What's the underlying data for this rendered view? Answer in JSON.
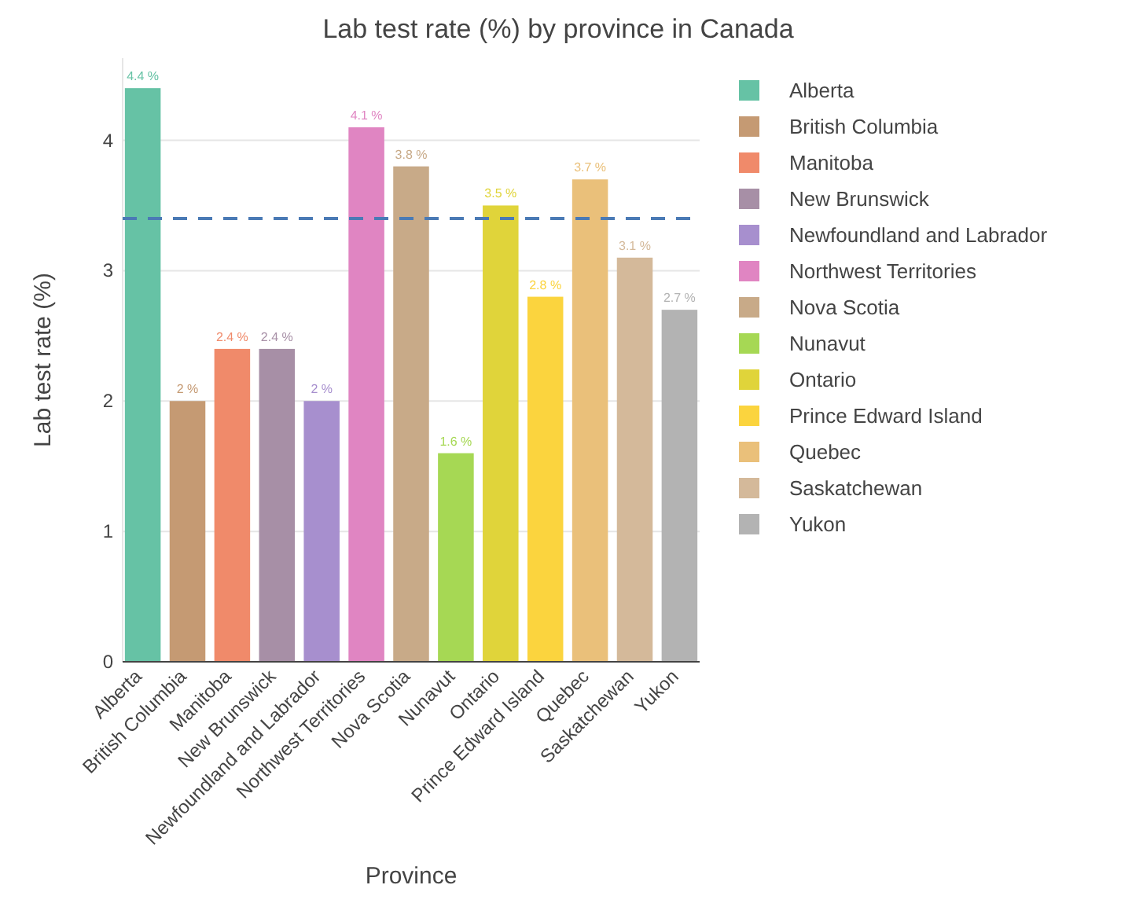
{
  "chart_data": {
    "type": "bar",
    "title": "Lab test rate (%) by province in Canada",
    "xlabel": "Province",
    "ylabel": "Lab test rate (%)",
    "categories": [
      "Alberta",
      "British Columbia",
      "Manitoba",
      "New Brunswick",
      "Newfoundland and Labrador",
      "Northwest Territories",
      "Nova Scotia",
      "Nunavut",
      "Ontario",
      "Prince Edward Island",
      "Quebec",
      "Saskatchewan",
      "Yukon"
    ],
    "series": [
      {
        "name": "Alberta",
        "color": "#66c2a5",
        "values": [
          4.4,
          null,
          null,
          null,
          null,
          null,
          null,
          null,
          null,
          null,
          null,
          null,
          null
        ],
        "value_labels": [
          "4.4 %",
          null,
          null,
          null,
          null,
          null,
          null,
          null,
          null,
          null,
          null,
          null,
          null
        ]
      },
      {
        "name": "British Columbia",
        "color": "#c59a73",
        "values": [
          null,
          2,
          null,
          null,
          null,
          null,
          null,
          null,
          null,
          null,
          null,
          null,
          null
        ],
        "value_labels": [
          null,
          "2 %",
          null,
          null,
          null,
          null,
          null,
          null,
          null,
          null,
          null,
          null,
          null
        ]
      },
      {
        "name": "Manitoba",
        "color": "#f08a6a",
        "values": [
          null,
          null,
          2.4,
          null,
          null,
          null,
          null,
          null,
          null,
          null,
          null,
          null,
          null
        ],
        "value_labels": [
          null,
          null,
          "2.4 %",
          null,
          null,
          null,
          null,
          null,
          null,
          null,
          null,
          null,
          null
        ]
      },
      {
        "name": "New Brunswick",
        "color": "#a78fa6",
        "values": [
          null,
          null,
          null,
          2.4,
          null,
          null,
          null,
          null,
          null,
          null,
          null,
          null,
          null
        ],
        "value_labels": [
          null,
          null,
          null,
          "2.4 %",
          null,
          null,
          null,
          null,
          null,
          null,
          null,
          null,
          null
        ]
      },
      {
        "name": "Newfoundland and Labrador",
        "color": "#a78fce",
        "values": [
          null,
          null,
          null,
          null,
          2,
          null,
          null,
          null,
          null,
          null,
          null,
          null,
          null
        ],
        "value_labels": [
          null,
          null,
          null,
          null,
          "2 %",
          null,
          null,
          null,
          null,
          null,
          null,
          null,
          null
        ]
      },
      {
        "name": "Northwest Territories",
        "color": "#e085c2",
        "values": [
          null,
          null,
          null,
          null,
          null,
          4.1,
          null,
          null,
          null,
          null,
          null,
          null,
          null
        ],
        "value_labels": [
          null,
          null,
          null,
          null,
          null,
          "4.1 %",
          null,
          null,
          null,
          null,
          null,
          null,
          null
        ]
      },
      {
        "name": "Nova Scotia",
        "color": "#c8aa88",
        "values": [
          null,
          null,
          null,
          null,
          null,
          null,
          3.8,
          null,
          null,
          null,
          null,
          null,
          null
        ],
        "value_labels": [
          null,
          null,
          null,
          null,
          null,
          null,
          "3.8 %",
          null,
          null,
          null,
          null,
          null,
          null
        ]
      },
      {
        "name": "Nunavut",
        "color": "#a6d854",
        "values": [
          null,
          null,
          null,
          null,
          null,
          null,
          null,
          1.6,
          null,
          null,
          null,
          null,
          null
        ],
        "value_labels": [
          null,
          null,
          null,
          null,
          null,
          null,
          null,
          "1.6 %",
          null,
          null,
          null,
          null,
          null
        ]
      },
      {
        "name": "Ontario",
        "color": "#e0d43a",
        "values": [
          null,
          null,
          null,
          null,
          null,
          null,
          null,
          null,
          3.5,
          null,
          null,
          null,
          null
        ],
        "value_labels": [
          null,
          null,
          null,
          null,
          null,
          null,
          null,
          null,
          "3.5 %",
          null,
          null,
          null,
          null
        ]
      },
      {
        "name": "Prince Edward Island",
        "color": "#fbd43e",
        "values": [
          null,
          null,
          null,
          null,
          null,
          null,
          null,
          null,
          null,
          2.8,
          null,
          null,
          null
        ],
        "value_labels": [
          null,
          null,
          null,
          null,
          null,
          null,
          null,
          null,
          null,
          "2.8 %",
          null,
          null,
          null
        ]
      },
      {
        "name": "Quebec",
        "color": "#eac07a",
        "values": [
          null,
          null,
          null,
          null,
          null,
          null,
          null,
          null,
          null,
          null,
          3.7,
          null,
          null
        ],
        "value_labels": [
          null,
          null,
          null,
          null,
          null,
          null,
          null,
          null,
          null,
          null,
          "3.7 %",
          null,
          null
        ]
      },
      {
        "name": "Saskatchewan",
        "color": "#d4b99a",
        "values": [
          null,
          null,
          null,
          null,
          null,
          null,
          null,
          null,
          null,
          null,
          null,
          3.1,
          null
        ],
        "value_labels": [
          null,
          null,
          null,
          null,
          null,
          null,
          null,
          null,
          null,
          null,
          null,
          "3.1 %",
          null
        ]
      },
      {
        "name": "Yukon",
        "color": "#b3b3b3",
        "values": [
          null,
          null,
          null,
          null,
          null,
          null,
          null,
          null,
          null,
          null,
          null,
          null,
          2.7
        ],
        "value_labels": [
          null,
          null,
          null,
          null,
          null,
          null,
          null,
          null,
          null,
          null,
          null,
          null,
          "2.7 %"
        ]
      }
    ],
    "ylim": [
      0,
      4.63
    ],
    "yticks": [
      0,
      1,
      2,
      3,
      4
    ],
    "grid": "y",
    "legend": "right",
    "ref_lines": [
      {
        "axis": "y",
        "value": 3.4,
        "color": "#4a7ab5",
        "line_style": "dashed"
      }
    ]
  }
}
